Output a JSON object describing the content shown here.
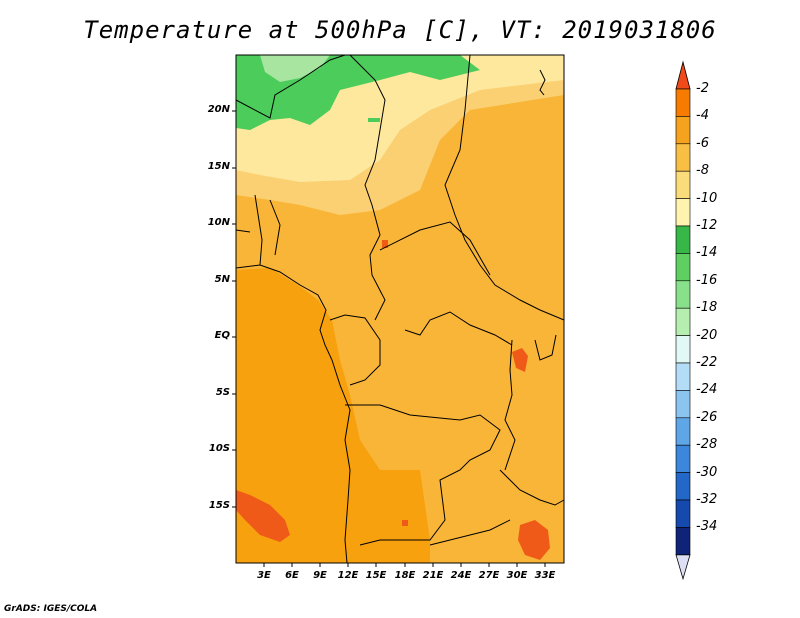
{
  "title": "Temperature at 500hPa [C], VT: 2019031806",
  "credit": "GrADS: IGES/COLA",
  "lat_ticks": [
    "20N",
    "15N",
    "10N",
    "5N",
    "EQ",
    "5S",
    "10S",
    "15S"
  ],
  "lon_ticks": [
    "3E",
    "6E",
    "9E",
    "12E",
    "15E",
    "18E",
    "21E",
    "24E",
    "27E",
    "30E",
    "33E"
  ],
  "colorbar": {
    "labels": [
      "-2",
      "-4",
      "-6",
      "-8",
      "-10",
      "-12",
      "-14",
      "-16",
      "-18",
      "-20",
      "-22",
      "-24",
      "-26",
      "-28",
      "-30",
      "-32",
      "-34"
    ],
    "colors": [
      "#f04a1a",
      "#f77b00",
      "#f5a21e",
      "#f9bf45",
      "#fbdc7a",
      "#fff3b0",
      "#37b747",
      "#5fcf62",
      "#88e08a",
      "#b6eeb0",
      "#e2f8f6",
      "#b3dcf6",
      "#8cc4f0",
      "#5fa6e6",
      "#3c87dc",
      "#2368c8",
      "#1549ae",
      "#0f2478"
    ]
  },
  "colors": {
    "ocean": "#f7a10e",
    "land_orange": "#f9b538",
    "land_light": "#fbd072",
    "land_pale": "#fde89e",
    "green": "#4ccc5a",
    "light_green": "#a8e5a0",
    "red": "#f05a18"
  }
}
